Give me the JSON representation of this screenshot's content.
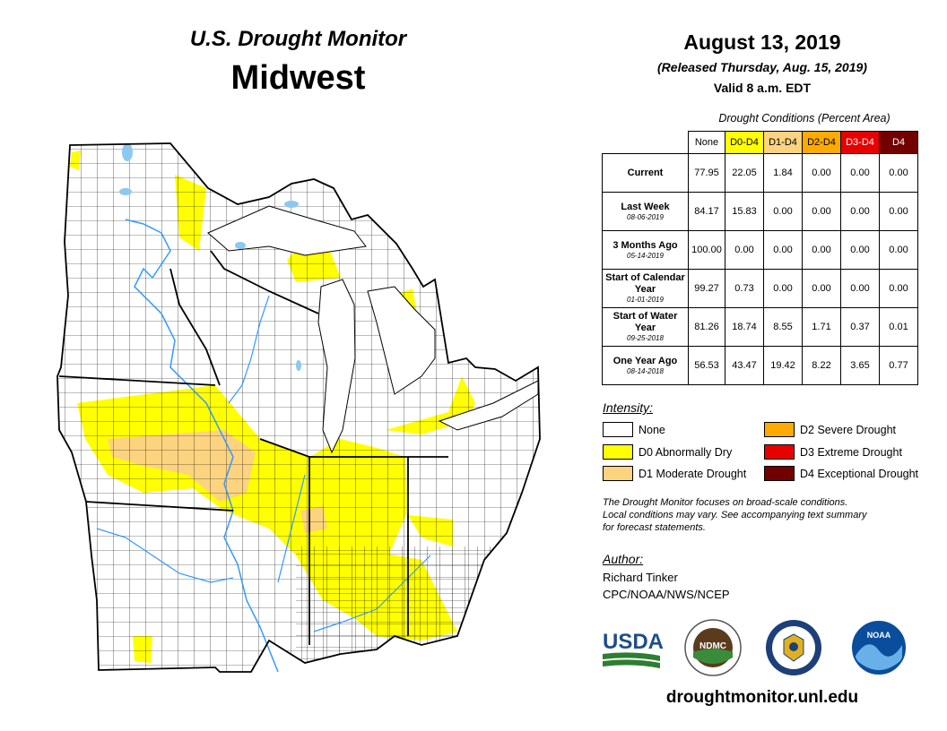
{
  "header": {
    "monitor_title": "U.S. Drought Monitor",
    "region": "Midwest",
    "date": "August 13, 2019",
    "released": "(Released Thursday, Aug. 15, 2019)",
    "valid": "Valid 8 a.m. EDT"
  },
  "table": {
    "caption": "Drought Conditions (Percent Area)",
    "columns": [
      {
        "label": "None",
        "color": "#ffffff"
      },
      {
        "label": "D0-D4",
        "color": "#ffff00"
      },
      {
        "label": "D1-D4",
        "color": "#fcd37f"
      },
      {
        "label": "D2-D4",
        "color": "#ffaa00"
      },
      {
        "label": "D3-D4",
        "color": "#e60000"
      },
      {
        "label": "D4",
        "color": "#730000"
      }
    ],
    "rows": [
      {
        "label": "Current",
        "sub": "",
        "values": [
          "77.95",
          "22.05",
          "1.84",
          "0.00",
          "0.00",
          "0.00"
        ]
      },
      {
        "label": "Last Week",
        "sub": "08-06-2019",
        "values": [
          "84.17",
          "15.83",
          "0.00",
          "0.00",
          "0.00",
          "0.00"
        ]
      },
      {
        "label": "3 Months Ago",
        "sub": "05-14-2019",
        "values": [
          "100.00",
          "0.00",
          "0.00",
          "0.00",
          "0.00",
          "0.00"
        ]
      },
      {
        "label": "Start of Calendar Year",
        "sub": "01-01-2019",
        "values": [
          "99.27",
          "0.73",
          "0.00",
          "0.00",
          "0.00",
          "0.00"
        ]
      },
      {
        "label": "Start of Water Year",
        "sub": "09-25-2018",
        "values": [
          "81.26",
          "18.74",
          "8.55",
          "1.71",
          "0.37",
          "0.01"
        ]
      },
      {
        "label": "One Year Ago",
        "sub": "08-14-2018",
        "values": [
          "56.53",
          "43.47",
          "19.42",
          "8.22",
          "3.65",
          "0.77"
        ]
      }
    ]
  },
  "legend": {
    "title": "Intensity:",
    "items": [
      {
        "label": "None",
        "color": "#ffffff"
      },
      {
        "label": "D0 Abnormally Dry",
        "color": "#ffff00"
      },
      {
        "label": "D1 Moderate Drought",
        "color": "#fcd37f"
      },
      {
        "label": "D2 Severe Drought",
        "color": "#ffaa00"
      },
      {
        "label": "D3 Extreme Drought",
        "color": "#e60000"
      },
      {
        "label": "D4 Exceptional Drought",
        "color": "#730000"
      }
    ]
  },
  "note": {
    "line1": "The Drought Monitor focuses on broad-scale conditions.",
    "line2": "Local conditions may vary. See accompanying text summary",
    "line3": "for forecast statements."
  },
  "author": {
    "label": "Author:",
    "name": "Richard Tinker",
    "org": "CPC/NOAA/NWS/NCEP"
  },
  "logos": {
    "usda": "USDA",
    "ndmc": "NDMC",
    "noaa": "NOAA"
  },
  "url": "droughtmonitor.unl.edu",
  "colors": {
    "lake": "#8cc8f0",
    "river": "#3399ff",
    "county_line": "#000000"
  }
}
